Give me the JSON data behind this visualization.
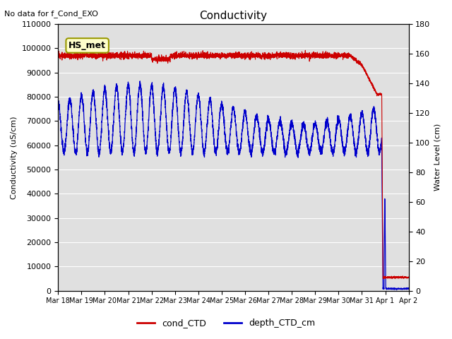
{
  "title": "Conductivity",
  "top_left_text": "No data for f_Cond_EXO",
  "legend_box_text": "HS_met",
  "ylabel_left": "Conductivity (uS/cm)",
  "ylabel_right": "Water Level (cm)",
  "ylim_left": [
    0,
    110000
  ],
  "ylim_right": [
    0,
    180
  ],
  "yticks_left": [
    0,
    10000,
    20000,
    30000,
    40000,
    50000,
    60000,
    70000,
    80000,
    90000,
    100000,
    110000
  ],
  "yticks_right": [
    0,
    20,
    40,
    60,
    80,
    100,
    120,
    140,
    160,
    180
  ],
  "xticklabels": [
    "Mar 18",
    "Mar 19",
    "Mar 20",
    "Mar 21",
    "Mar 22",
    "Mar 23",
    "Mar 24",
    "Mar 25",
    "Mar 26",
    "Mar 27",
    "Mar 28",
    "Mar 29",
    "Mar 30",
    "Mar 31",
    "Apr 1",
    "Apr 2"
  ],
  "plot_bg_color": "#e0e0e0",
  "grid_color": "#ffffff",
  "cond_color": "#cc0000",
  "depth_color": "#0000cc",
  "legend_cond": "cond_CTD",
  "legend_depth": "depth_CTD_cm",
  "tidal_period_hours": 12.0,
  "n_days": 15
}
